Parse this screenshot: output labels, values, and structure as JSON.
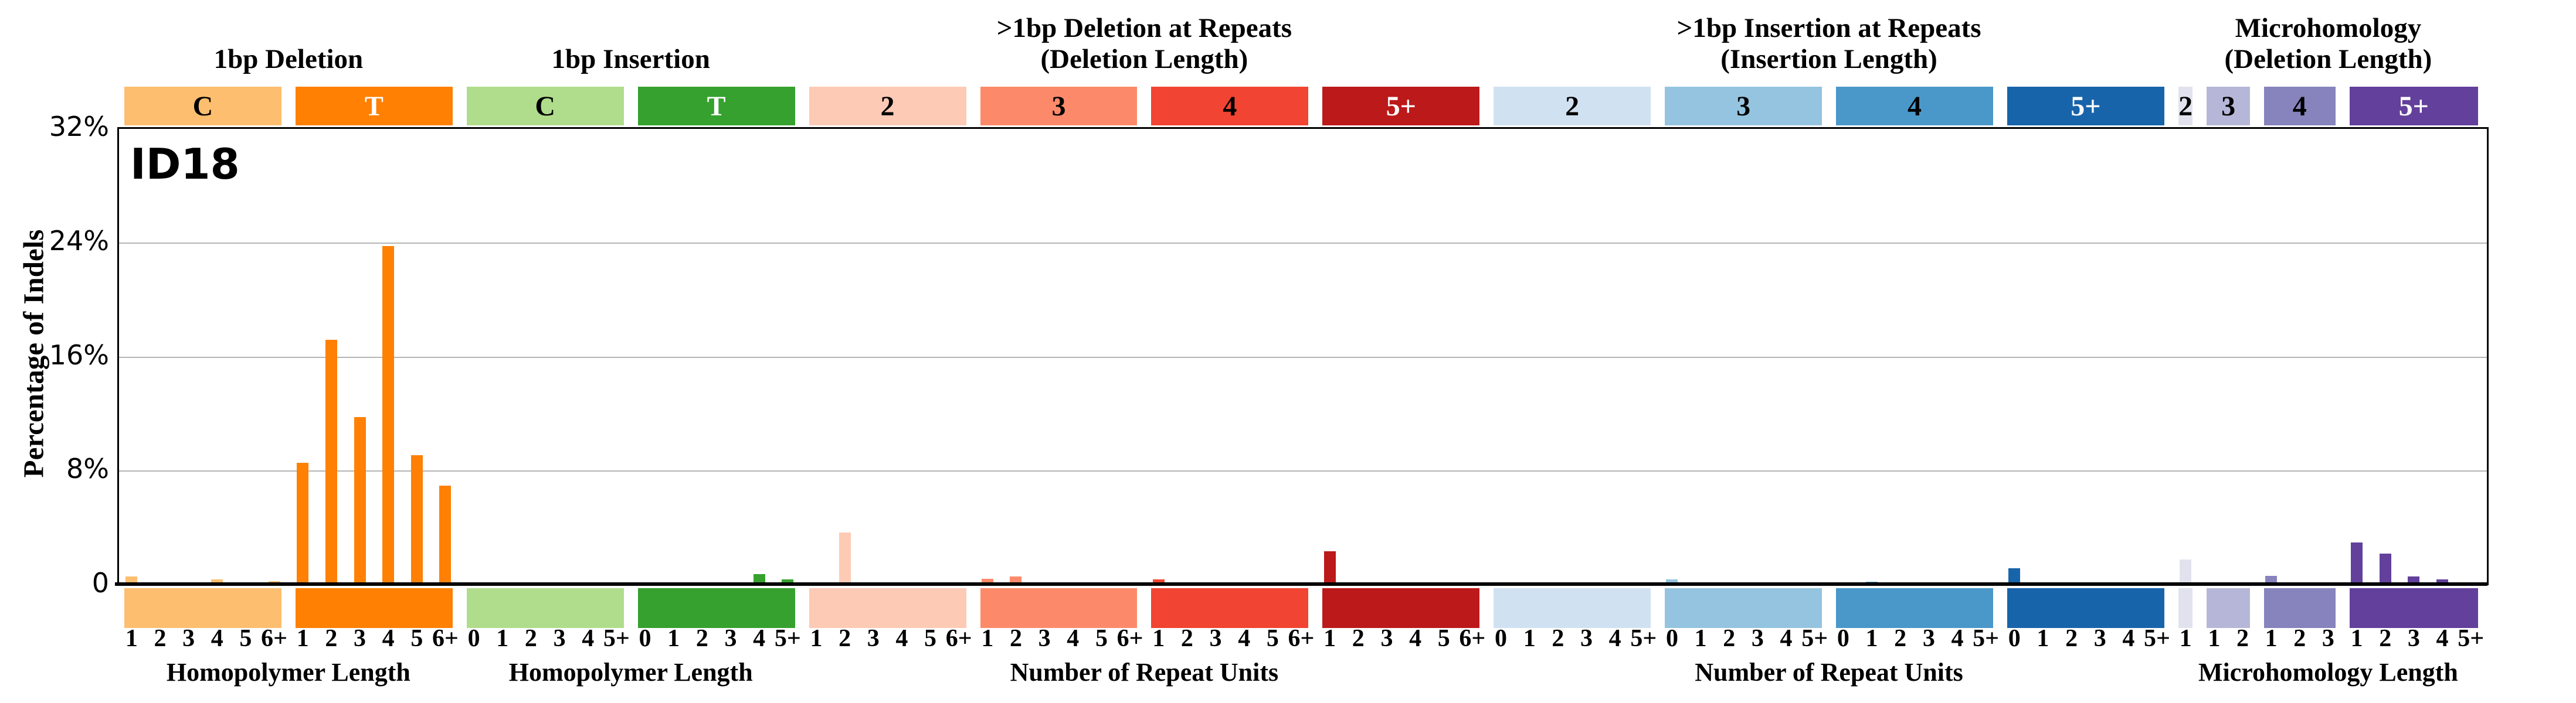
{
  "chart_data": {
    "type": "bar",
    "title": "ID18",
    "ylabel": "Percentage of Indels",
    "ylim": [
      0,
      32
    ],
    "grid": "horizontal",
    "gridlines_percent": [
      8,
      16,
      24
    ],
    "y_ticks": [
      {
        "label": "32%",
        "value": 32
      },
      {
        "label": "24%",
        "value": 24
      },
      {
        "label": "16%",
        "value": 16
      },
      {
        "label": "8%",
        "value": 8
      },
      {
        "label": "0",
        "value": 0
      }
    ],
    "group_headers": [
      {
        "lines": [
          "1bp Deletion"
        ],
        "sections": [
          0,
          1
        ]
      },
      {
        "lines": [
          "1bp Insertion"
        ],
        "sections": [
          2,
          3
        ]
      },
      {
        "lines": [
          ">1bp Deletion at Repeats",
          "(Deletion Length)"
        ],
        "sections": [
          4,
          7
        ]
      },
      {
        "lines": [
          ">1bp Insertion at Repeats",
          "(Insertion Length)"
        ],
        "sections": [
          8,
          11
        ]
      },
      {
        "lines": [
          "Microhomology",
          "(Deletion Length)"
        ],
        "sections": [
          12,
          15
        ]
      }
    ],
    "x_group_labels": [
      {
        "text": "Homopolymer Length",
        "sections": [
          0,
          1
        ]
      },
      {
        "text": "Homopolymer Length",
        "sections": [
          2,
          3
        ]
      },
      {
        "text": "Number of Repeat Units",
        "sections": [
          4,
          7
        ]
      },
      {
        "text": "Number of Repeat Units",
        "sections": [
          8,
          11
        ]
      },
      {
        "text": "Microhomology Length",
        "sections": [
          12,
          15
        ]
      }
    ],
    "sections": [
      {
        "label": "C",
        "color": "#FDBE6F",
        "label_color": "#000000",
        "ticks": [
          "1",
          "2",
          "3",
          "4",
          "5",
          "6+"
        ],
        "values": [
          0.6,
          0.2,
          0.2,
          0.4,
          0.0,
          0.3
        ]
      },
      {
        "label": "T",
        "color": "#FF8002",
        "label_color": "#FFFFFF",
        "ticks": [
          "1",
          "2",
          "3",
          "4",
          "5",
          "6+"
        ],
        "values": [
          8.6,
          17.2,
          11.8,
          23.8,
          9.1,
          7.0
        ]
      },
      {
        "label": "C",
        "color": "#B0DD8B",
        "label_color": "#000000",
        "ticks": [
          "0",
          "1",
          "2",
          "3",
          "4",
          "5+"
        ],
        "values": [
          0.0,
          0.2,
          0.0,
          0.0,
          0.0,
          0.0
        ]
      },
      {
        "label": "T",
        "color": "#36A12E",
        "label_color": "#FFFFFF",
        "ticks": [
          "0",
          "1",
          "2",
          "3",
          "4",
          "5+"
        ],
        "values": [
          0.0,
          0.2,
          0.0,
          0.2,
          0.8,
          0.4
        ]
      },
      {
        "label": "2",
        "color": "#FDCAB5",
        "label_color": "#000000",
        "ticks": [
          "1",
          "2",
          "3",
          "4",
          "5",
          "6+"
        ],
        "values": [
          0.0,
          3.7,
          0.2,
          0.0,
          0.2,
          0.0
        ]
      },
      {
        "label": "3",
        "color": "#FC8A6A",
        "label_color": "#000000",
        "ticks": [
          "1",
          "2",
          "3",
          "4",
          "5",
          "6+"
        ],
        "values": [
          0.45,
          0.6,
          0.0,
          0.0,
          0.0,
          0.0
        ]
      },
      {
        "label": "4",
        "color": "#F14432",
        "label_color": "#000000",
        "ticks": [
          "1",
          "2",
          "3",
          "4",
          "5",
          "6+"
        ],
        "values": [
          0.4,
          0.2,
          0.0,
          0.0,
          0.0,
          0.0
        ]
      },
      {
        "label": "5+",
        "color": "#BC191A",
        "label_color": "#FFFFFF",
        "ticks": [
          "1",
          "2",
          "3",
          "4",
          "5",
          "6+"
        ],
        "values": [
          2.4,
          0.0,
          0.0,
          0.0,
          0.0,
          0.0
        ]
      },
      {
        "label": "2",
        "color": "#D0E1F2",
        "label_color": "#000000",
        "ticks": [
          "0",
          "1",
          "2",
          "3",
          "4",
          "5+"
        ],
        "values": [
          0.0,
          0.0,
          0.0,
          0.2,
          0.0,
          0.2
        ]
      },
      {
        "label": "3",
        "color": "#94C4DF",
        "label_color": "#000000",
        "ticks": [
          "0",
          "1",
          "2",
          "3",
          "4",
          "5+"
        ],
        "values": [
          0.4,
          0.0,
          0.0,
          0.0,
          0.0,
          0.0
        ]
      },
      {
        "label": "4",
        "color": "#4A98C9",
        "label_color": "#000000",
        "ticks": [
          "0",
          "1",
          "2",
          "3",
          "4",
          "5+"
        ],
        "values": [
          0.0,
          0.25,
          0.0,
          0.0,
          0.0,
          0.0
        ]
      },
      {
        "label": "5+",
        "color": "#1764AB",
        "label_color": "#FFFFFF",
        "ticks": [
          "0",
          "1",
          "2",
          "3",
          "4",
          "5+"
        ],
        "values": [
          1.2,
          0.2,
          0.0,
          0.0,
          0.0,
          0.0
        ]
      },
      {
        "label": "2",
        "color": "#E2E2EF",
        "label_color": "#000000",
        "ticks": [
          "1"
        ],
        "values": [
          1.8
        ]
      },
      {
        "label": "3",
        "color": "#B6B6D8",
        "label_color": "#000000",
        "ticks": [
          "1",
          "2"
        ],
        "values": [
          0.0,
          0.0
        ]
      },
      {
        "label": "4",
        "color": "#8683BD",
        "label_color": "#000000",
        "ticks": [
          "1",
          "2",
          "3"
        ],
        "values": [
          0.65,
          0.0,
          0.0
        ]
      },
      {
        "label": "5+",
        "color": "#62409B",
        "label_color": "#FFFFFF",
        "ticks": [
          "1",
          "2",
          "3",
          "4",
          "5+"
        ],
        "values": [
          3.0,
          2.2,
          0.6,
          0.4,
          0.0
        ]
      }
    ]
  }
}
